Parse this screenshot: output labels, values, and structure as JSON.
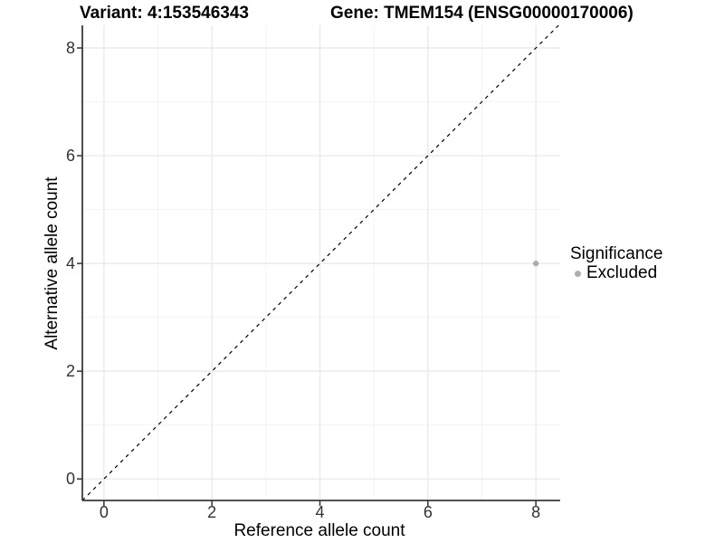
{
  "colors": {
    "background": "#ffffff",
    "grid_major": "#e7e7e7",
    "grid_minor": "#f2f2f2",
    "axis_line": "#3a3a3a",
    "tick_mark": "#333333",
    "tick_label": "#333333",
    "reference_line": "#000000",
    "excluded_point": "#aeaeae"
  },
  "chart_data": {
    "type": "scatter",
    "title_left": "Variant: 4:153546343",
    "title_right": "Gene: TMEM154 (ENSG00000170006)",
    "xlabel": "Reference allele count",
    "ylabel": "Alternative allele count",
    "xlim": [
      -0.4,
      8.45
    ],
    "ylim": [
      -0.4,
      8.42
    ],
    "x_ticks": [
      0,
      2,
      4,
      6,
      8
    ],
    "y_ticks": [
      0,
      2,
      4,
      6,
      8
    ],
    "x_minor_ticks": [
      1,
      3,
      5,
      7
    ],
    "y_minor_ticks": [
      1,
      3,
      5,
      7
    ],
    "grid": true,
    "reference_line": {
      "type": "abline",
      "slope": 1,
      "intercept": 0,
      "style": "dashed"
    },
    "series": [
      {
        "name": "Excluded",
        "color": "#aeaeae",
        "points": [
          {
            "x": 8,
            "y": 4
          }
        ]
      }
    ],
    "legend": {
      "title": "Significance",
      "position": "right",
      "items": [
        {
          "label": "Excluded",
          "color": "#aeaeae"
        }
      ]
    }
  }
}
